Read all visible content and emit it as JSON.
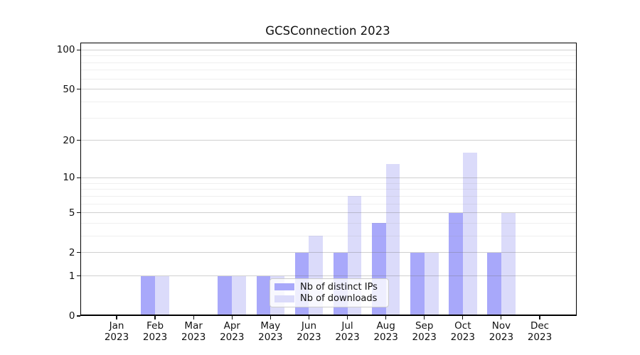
{
  "chart_data": {
    "type": "bar",
    "title": "GCSConnection 2023",
    "xlabel": "",
    "ylabel": "",
    "yscale": "log1p",
    "ylim": [
      0,
      112
    ],
    "yticks": [
      0,
      1,
      2,
      5,
      10,
      20,
      50,
      100
    ],
    "minor_yticks": [
      3,
      4,
      6,
      7,
      8,
      9,
      30,
      40,
      60,
      70,
      80,
      90
    ],
    "grid": "horizontal",
    "categories": [
      "Jan",
      "Feb",
      "Mar",
      "Apr",
      "May",
      "Jun",
      "Jul",
      "Aug",
      "Sep",
      "Oct",
      "Nov",
      "Dec"
    ],
    "year": "2023",
    "legend_position": "lower-left-of-center",
    "series": [
      {
        "name": "Nb of distinct IPs",
        "color": "#a8a8fa",
        "values": [
          0,
          1,
          0,
          1,
          1,
          2,
          2,
          4,
          2,
          5,
          2,
          0
        ]
      },
      {
        "name": "Nb of downloads",
        "color": "#dbdbfa",
        "values": [
          0,
          1,
          0,
          1,
          1,
          3,
          7,
          13,
          2,
          16,
          5,
          0
        ]
      }
    ]
  }
}
